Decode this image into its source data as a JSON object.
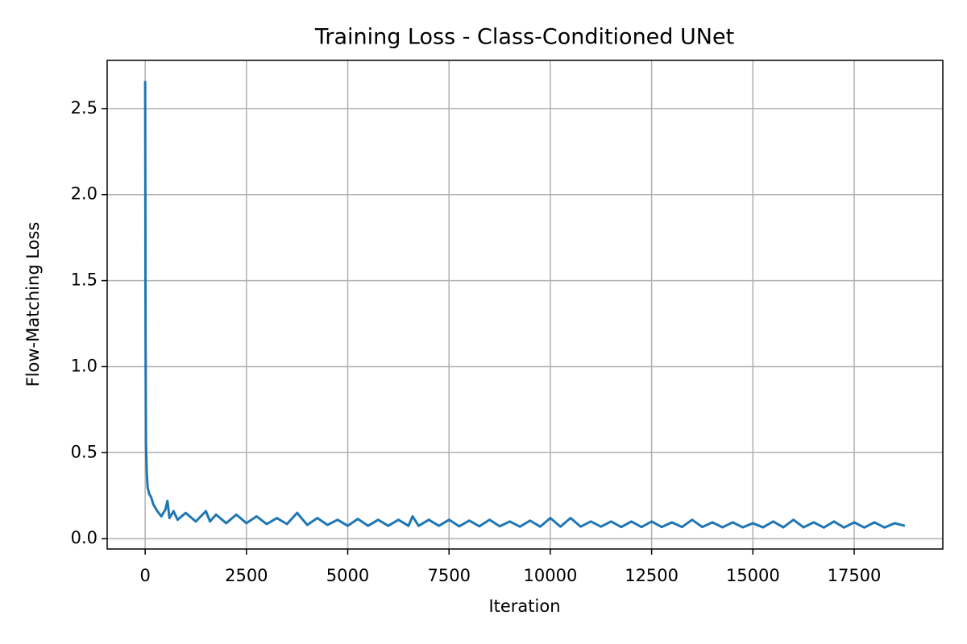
{
  "chart_data": {
    "type": "line",
    "title": "Training Loss - Class-Conditioned UNet",
    "x_label": "Iteration",
    "y_label": "Flow-Matching Loss",
    "x": [
      0,
      10,
      20,
      40,
      60,
      100,
      150,
      200,
      300,
      400,
      500,
      550,
      600,
      700,
      800,
      1000,
      1250,
      1500,
      1600,
      1750,
      2000,
      2250,
      2500,
      2750,
      3000,
      3250,
      3500,
      3750,
      4000,
      4250,
      4500,
      4750,
      5000,
      5250,
      5500,
      5750,
      6000,
      6250,
      6500,
      6600,
      6750,
      7000,
      7250,
      7500,
      7750,
      8000,
      8250,
      8500,
      8750,
      9000,
      9250,
      9500,
      9750,
      10000,
      10250,
      10500,
      10750,
      11000,
      11250,
      11500,
      11750,
      12000,
      12250,
      12500,
      12750,
      13000,
      13250,
      13500,
      13750,
      14000,
      14250,
      14500,
      14750,
      15000,
      15250,
      15500,
      15750,
      16000,
      16250,
      16500,
      16750,
      17000,
      17250,
      17500,
      17750,
      18000,
      18250,
      18500,
      18750
    ],
    "series": [
      {
        "name": "Loss",
        "color": "#1f77b4",
        "values": [
          2.66,
          1.2,
          0.55,
          0.38,
          0.3,
          0.26,
          0.24,
          0.2,
          0.16,
          0.13,
          0.17,
          0.22,
          0.12,
          0.16,
          0.11,
          0.15,
          0.1,
          0.16,
          0.1,
          0.14,
          0.09,
          0.14,
          0.09,
          0.13,
          0.085,
          0.12,
          0.085,
          0.15,
          0.08,
          0.12,
          0.08,
          0.11,
          0.075,
          0.115,
          0.075,
          0.11,
          0.075,
          0.11,
          0.075,
          0.13,
          0.075,
          0.11,
          0.075,
          0.11,
          0.072,
          0.105,
          0.072,
          0.11,
          0.072,
          0.1,
          0.07,
          0.105,
          0.07,
          0.12,
          0.07,
          0.12,
          0.07,
          0.1,
          0.07,
          0.1,
          0.068,
          0.1,
          0.068,
          0.1,
          0.068,
          0.095,
          0.068,
          0.11,
          0.068,
          0.095,
          0.066,
          0.095,
          0.066,
          0.09,
          0.066,
          0.1,
          0.066,
          0.11,
          0.066,
          0.095,
          0.065,
          0.1,
          0.065,
          0.095,
          0.065,
          0.095,
          0.065,
          0.09,
          0.075
        ]
      }
    ],
    "xlim": [
      -937.5,
      19687.5
    ],
    "ylim": [
      -0.06,
      2.78
    ],
    "xticks": [
      0,
      2500,
      5000,
      7500,
      10000,
      12500,
      15000,
      17500
    ],
    "yticks": [
      {
        "value": 0,
        "label": "0.0"
      },
      0.5,
      {
        "value": 1,
        "label": "1.0"
      },
      1.5,
      {
        "value": 2,
        "label": "2.0"
      },
      2.5
    ],
    "grid": true
  }
}
